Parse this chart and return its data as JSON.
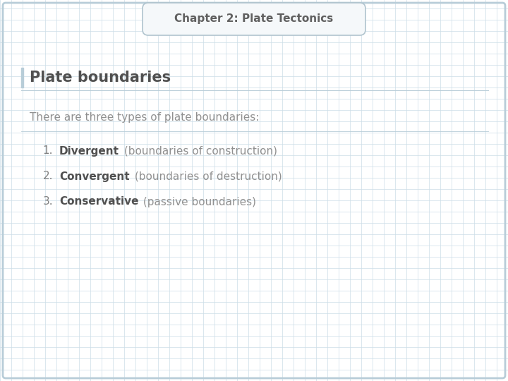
{
  "title": "Chapter 2: Plate Tectonics",
  "heading": "Plate boundaries",
  "intro_text": "There are three types of plate boundaries:",
  "list_items": [
    {
      "number": "1.",
      "bold_text": "Divergent",
      "rest_text": " (boundaries of construction)"
    },
    {
      "number": "2.",
      "bold_text": "Convergent",
      "rest_text": " (boundaries of destruction)"
    },
    {
      "number": "3.",
      "bold_text": "Conservative",
      "rest_text": " (passive boundaries)"
    }
  ],
  "bg_color": "#ffffff",
  "outer_border_color": "#b8cdd8",
  "grid_color": "#ccdde8",
  "title_box_bg": "#f5f8fa",
  "title_box_border": "#b0c4ce",
  "title_text_color": "#606060",
  "heading_color": "#505050",
  "body_text_color": "#909090",
  "bold_text_color": "#505050",
  "number_color": "#808080",
  "left_bar_color": "#b8cdd8",
  "title_fontsize": 11,
  "heading_fontsize": 15,
  "body_fontsize": 11,
  "list_fontsize": 11
}
